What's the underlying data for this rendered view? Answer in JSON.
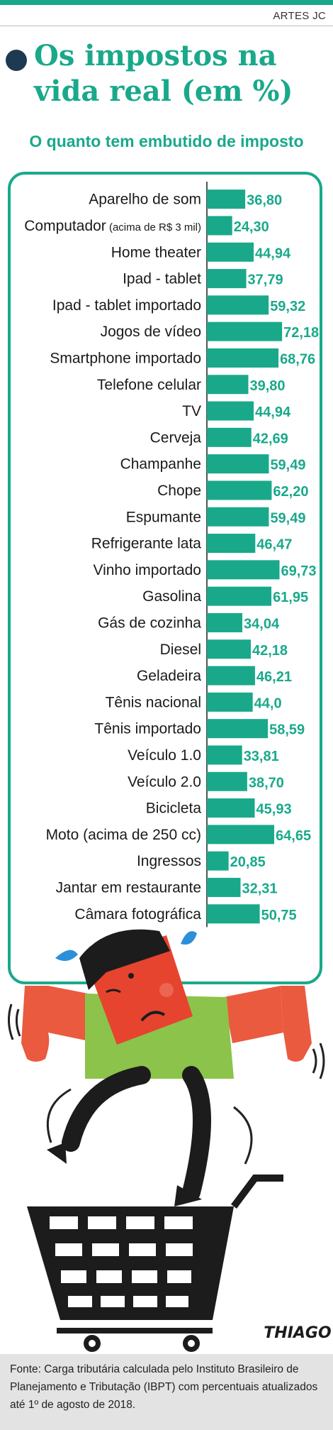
{
  "header": {
    "credit": "ARTES JC",
    "title_line1": "Os impostos na",
    "title_line2": "vida real (em %)",
    "subtitle": "O quanto tem embutido de imposto"
  },
  "colors": {
    "accent": "#19a98a",
    "bullet": "#1d3a52"
  },
  "chart_data": {
    "type": "bar",
    "orientation": "horizontal",
    "categories": [
      "Aparelho de som",
      "Computador",
      "Home theater",
      "Ipad - tablet",
      "Ipad - tablet importado",
      "Jogos de vídeo",
      "Smartphone importado",
      "Telefone celular",
      "TV",
      "Cerveja",
      "Champanhe",
      "Chope",
      "Espumante",
      "Refrigerante lata",
      "Vinho importado",
      "Gasolina",
      "Gás de cozinha",
      "Diesel",
      "Geladeira",
      "Tênis nacional",
      "Tênis importado",
      "Veículo 1.0",
      "Veículo 2.0",
      "Bicicleta",
      "Moto (acima de 250 cc)",
      "Ingressos",
      "Jantar em restaurante",
      "Câmara fotográfica"
    ],
    "category_notes": [
      "",
      "(acima de R$ 3 mil)",
      "",
      "",
      "",
      "",
      "",
      "",
      "",
      "",
      "",
      "",
      "",
      "",
      "",
      "",
      "",
      "",
      "",
      "",
      "",
      "",
      "",
      "",
      "",
      "",
      "",
      ""
    ],
    "values": [
      36.8,
      24.3,
      44.94,
      37.79,
      59.32,
      72.18,
      68.76,
      39.8,
      44.94,
      42.69,
      59.49,
      62.2,
      59.49,
      46.47,
      69.73,
      61.95,
      34.04,
      42.18,
      46.21,
      44.0,
      58.59,
      33.81,
      38.7,
      45.93,
      64.65,
      20.85,
      32.31,
      50.75
    ],
    "value_labels": [
      "36,80",
      "24,30",
      "44,94",
      "37,79",
      "59,32",
      "72,18",
      "68,76",
      "39,80",
      "44,94",
      "42,69",
      "59,49",
      "62,20",
      "59,49",
      "46,47",
      "69,73",
      "61,95",
      "34,04",
      "42,18",
      "46,21",
      "44,0",
      "58,59",
      "33,81",
      "38,70",
      "45,93",
      "64,65",
      "20,85",
      "32,31",
      "50,75"
    ],
    "xlim": [
      0,
      75
    ],
    "grid": false,
    "legend": "none",
    "bar_color": "#19a98a"
  },
  "illustration": {
    "signature": "THIAGO"
  },
  "footer": {
    "source": "Fonte: Carga tributária calculada pelo Instituto Brasileiro de Planejamento e Tributação (IBPT) com percentuais atualizados até 1º de agosto de 2018."
  }
}
